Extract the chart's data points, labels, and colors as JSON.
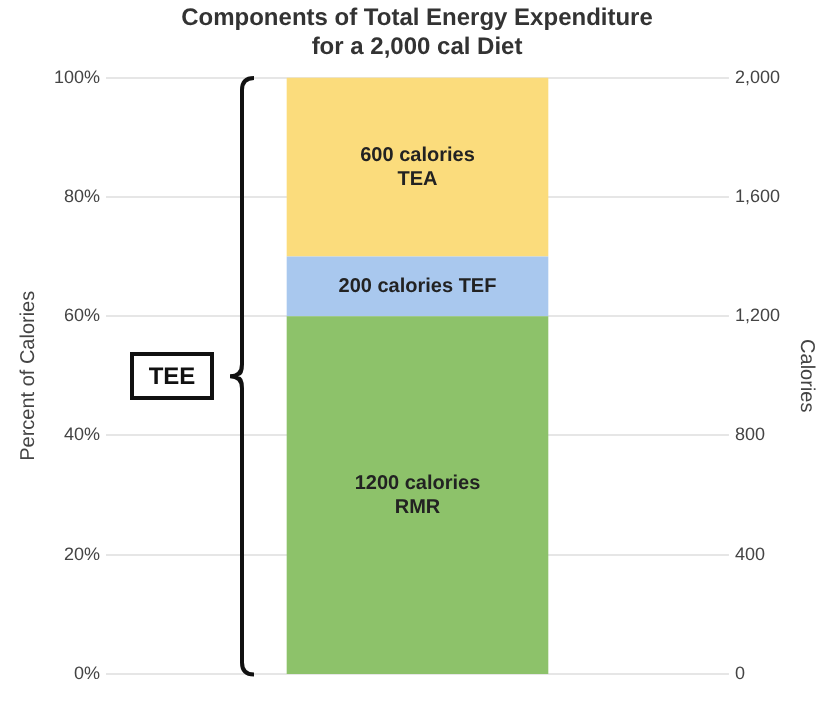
{
  "chart_data": {
    "type": "bar",
    "title": "Components of Total Energy Expenditure for a 2,000 cal Diet",
    "ylabel": "Percent of Calories",
    "y2label": "Calories",
    "categories": [
      null
    ],
    "stacked": true,
    "series": [
      {
        "color": "#8dc26a",
        "values": [
          1200
        ],
        "axis": "y2",
        "value_labels": [
          "1200 calories\nRMR"
        ]
      },
      {
        "color": "#a9c8ee",
        "values": [
          200
        ],
        "axis": "y2",
        "value_labels": [
          "200 calories TEF"
        ]
      },
      {
        "color": "#fbdc7c",
        "values": [
          600
        ],
        "axis": "y2",
        "value_labels": [
          "600 calories\nTEA"
        ]
      }
    ],
    "ylim": [
      0,
      100
    ],
    "yticks": [
      {
        "value": 0,
        "label": "0%"
      },
      {
        "value": 20,
        "label": "20%"
      },
      {
        "value": 40,
        "label": "40%"
      },
      {
        "value": 60,
        "label": "60%"
      },
      {
        "value": 80,
        "label": "80%"
      },
      {
        "value": 100,
        "label": "100%"
      }
    ],
    "y2lim": [
      0,
      2000
    ],
    "y2ticks": [
      0,
      400,
      800,
      {
        "value": 1200,
        "label": "1,200"
      },
      {
        "value": 1600,
        "label": "1,600"
      },
      {
        "value": 2000,
        "label": "2,000"
      }
    ],
    "grid": "y",
    "legend": false,
    "annotations": [
      "TEE"
    ]
  }
}
